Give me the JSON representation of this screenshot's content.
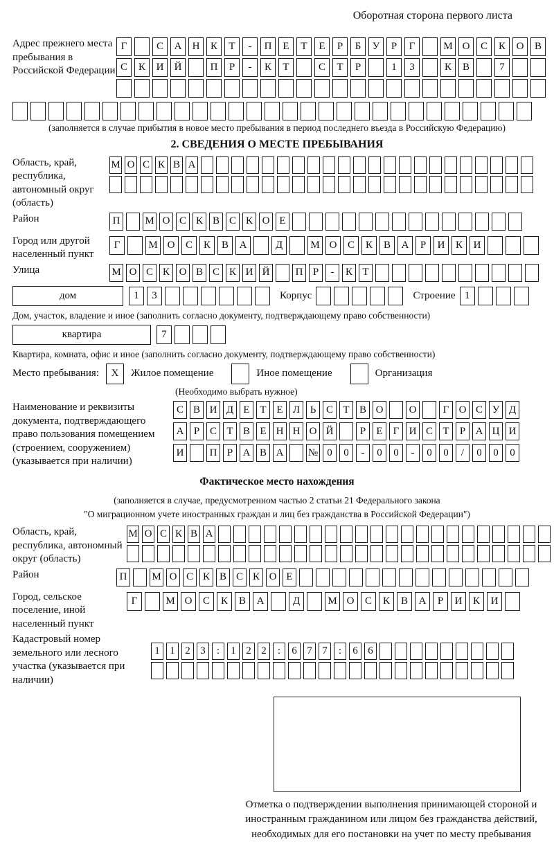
{
  "page": {
    "header_note": "Оборотная сторона первого листа"
  },
  "prev_address": {
    "label": "Адрес прежнего места пребывания в Российской Федерации",
    "rows": [
      {
        "count": 24,
        "cells": "Г САНКТ-ПЕТЕРБУРГ МОСКОВ"
      },
      {
        "count": 24,
        "cells": "СКИЙ ПР-КТ СТР 13 КВ 7"
      },
      {
        "count": 24,
        "cells": ""
      },
      {
        "count": 29,
        "cells": ""
      }
    ],
    "note": "(заполняется в случае прибытия в новое место пребывания в период последнего въезда в Российскую Федерацию)"
  },
  "section2": {
    "title": "2. СВЕДЕНИЯ О МЕСТЕ ПРЕБЫВАНИЯ",
    "region": {
      "label": "Область, край, республика, автономный округ (область)",
      "rows": [
        {
          "count": 28,
          "cells": "МОСКВА"
        },
        {
          "count": 28,
          "cells": ""
        }
      ]
    },
    "district": {
      "label": "Район",
      "row": {
        "count": 25,
        "cells": "П МОСКВСКОЕ"
      }
    },
    "city": {
      "label": "Город или другой населенный пункт",
      "row": {
        "count": 24,
        "cells": "Г МОСКВА Д МОСКВАРИКИ"
      }
    },
    "street": {
      "label": "Улица",
      "row": {
        "count": 26,
        "cells": "МОСКОВСКИЙ ПР-КТ"
      }
    },
    "house": {
      "label": "дом",
      "number": {
        "count": 8,
        "cells": "13"
      },
      "korpus_label": "Корпус",
      "korpus": {
        "count": 5,
        "cells": ""
      },
      "stroenie_label": "Строение",
      "stroenie": {
        "count": 4,
        "cells": "1"
      }
    },
    "house_note": "Дом, участок, владение и иное (заполнить согласно документу, подтверждающему право собственности)",
    "apartment": {
      "label": "квартира",
      "number": {
        "count": 4,
        "cells": "7"
      }
    },
    "apartment_note": "Квартира, комната, офис и иное (заполнить согласно документу, подтверждающему право собственности)",
    "stay": {
      "label": "Место пребывания:",
      "options": [
        {
          "label": "Жилое помещение",
          "mark": "X"
        },
        {
          "label": "Иное помещение",
          "mark": ""
        },
        {
          "label": "Организация",
          "mark": ""
        }
      ],
      "note": "(Необходимо выбрать нужное)"
    },
    "doc": {
      "label": "Наименование и реквизиты документа, подтверждающего право пользования помещением (строением, сооружением) (указывается при наличии)",
      "rows": [
        {
          "count": 21,
          "cells": "СВИДЕТЕЛЬСТВО О ГОСУД"
        },
        {
          "count": 21,
          "cells": "АРСТВЕННОЙ РЕГИСТРАЦИ"
        },
        {
          "count": 21,
          "cells": "И ПРАВА №00-00-00/000"
        }
      ]
    }
  },
  "actual": {
    "title": "Фактическое место нахождения",
    "note_line1": "(заполняется в случае, предусмотренном частью 2 статьи 21 Федерального закона",
    "note_line2": "\"О миграционном учете иностранных граждан и лиц без гражданства в Российской Федерации\")",
    "region": {
      "label": "Область, край, республика, автономный округ (область)",
      "rows": [
        {
          "count": 28,
          "cells": "МОСКВА"
        },
        {
          "count": 28,
          "cells": ""
        }
      ]
    },
    "district": {
      "label": "Район",
      "row": {
        "count": 25,
        "cells": "П МОСКВСКОЕ"
      }
    },
    "city": {
      "label": "Город, сельское поселение, иной населенный пункт",
      "row": {
        "count": 22,
        "cells": "Г МОСКВА Д МОСКВАРИКИ"
      }
    },
    "cadastral": {
      "label": "Кадастровый номер земельного или лесного участка (указывается при наличии)",
      "rows": [
        {
          "count": 24,
          "cells": "1123:122:677:66"
        },
        {
          "count": 24,
          "cells": ""
        }
      ]
    }
  },
  "confirmation": {
    "note": "Отметка о подтверждении выполнения принимающей стороной и иностранным гражданином или лицом без гражданства действий, необходимых для его постановки на учет по месту пребывания"
  }
}
